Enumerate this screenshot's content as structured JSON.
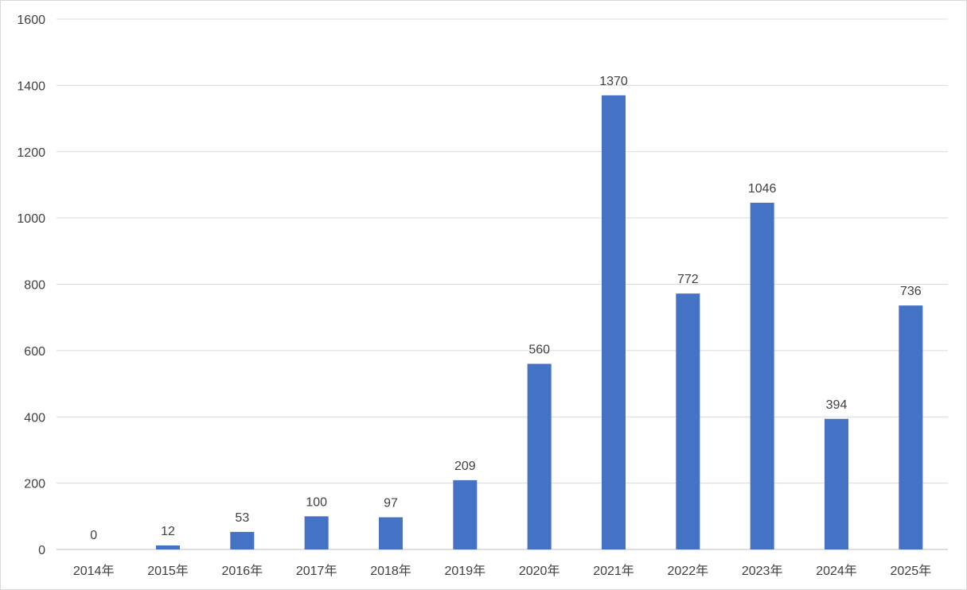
{
  "chart_data": {
    "type": "bar",
    "categories": [
      "2014年",
      "2015年",
      "2016年",
      "2017年",
      "2018年",
      "2019年",
      "2020年",
      "2021年",
      "2022年",
      "2023年",
      "2024年",
      "2025年"
    ],
    "values": [
      0,
      12,
      53,
      100,
      97,
      209,
      560,
      1370,
      772,
      1046,
      394,
      736
    ],
    "title": "",
    "xlabel": "",
    "ylabel": "",
    "ylim": [
      0,
      1600
    ],
    "yticks": [
      "0",
      "200",
      "400",
      "600",
      "800",
      "1000",
      "1200",
      "1400",
      "1600"
    ],
    "grid": true,
    "legend": "none",
    "data_labels": true
  },
  "colors": {
    "bar": "#4472C4",
    "grid": "#d9d9d9",
    "text": "#404040",
    "axis": "#bfbfbf"
  }
}
